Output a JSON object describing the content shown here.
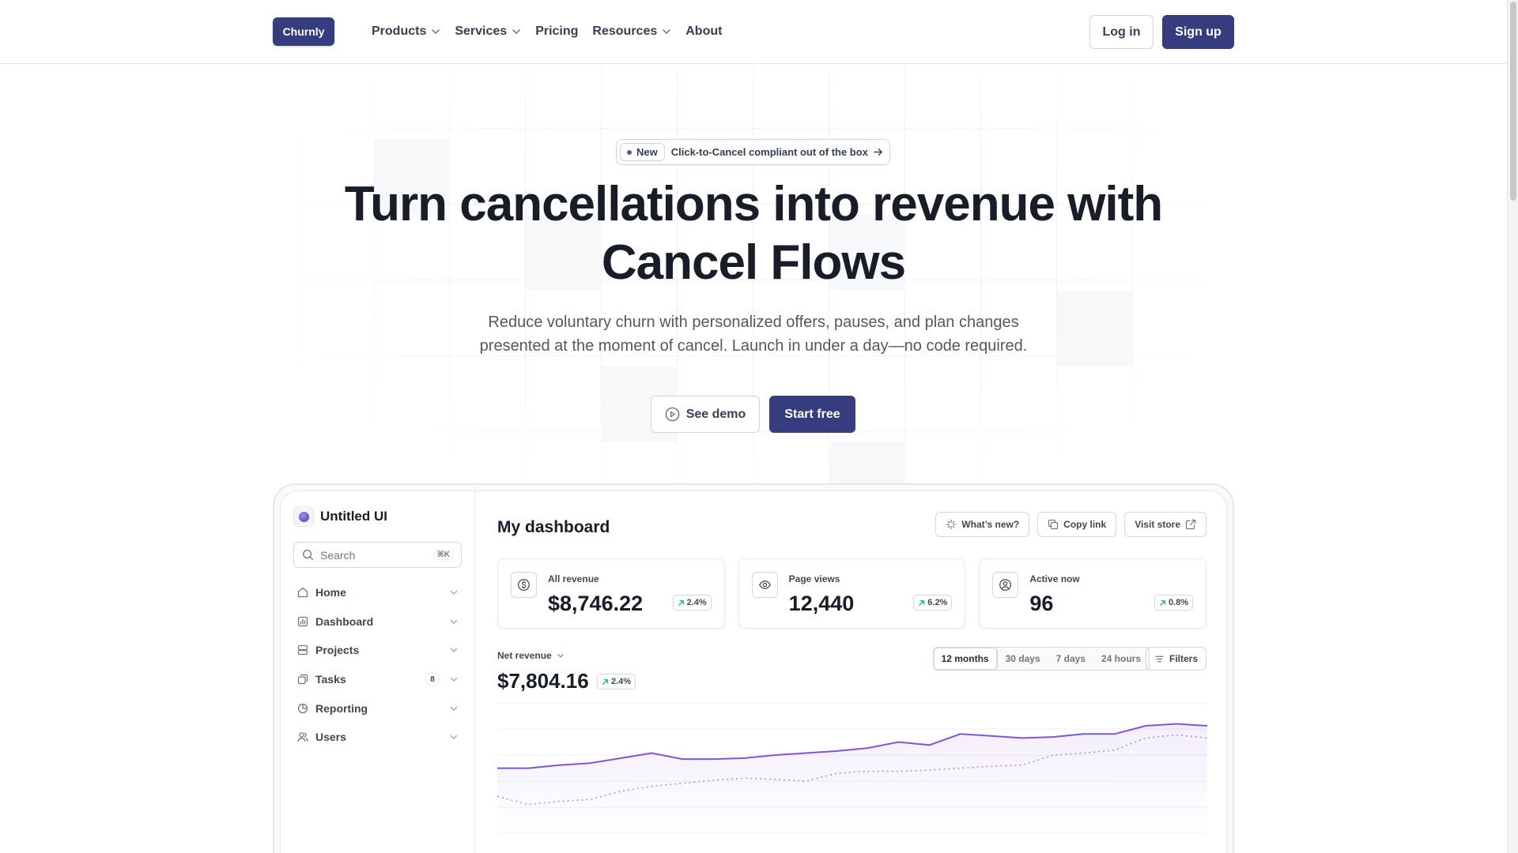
{
  "nav": {
    "logo": "Churnly",
    "items": [
      {
        "label": "Products",
        "dropdown": true
      },
      {
        "label": "Services",
        "dropdown": true
      },
      {
        "label": "Pricing",
        "dropdown": false
      },
      {
        "label": "Resources",
        "dropdown": true
      },
      {
        "label": "About",
        "dropdown": false
      }
    ],
    "login": "Log in",
    "signup": "Sign up"
  },
  "hero": {
    "badge_tag": "New",
    "badge_text": "Click-to-Cancel compliant out of the box",
    "headline_line1": "Turn cancellations into revenue with",
    "headline_line2": "Cancel Flows",
    "subhead_line1": "Reduce voluntary churn with personalized offers, pauses, and plan changes",
    "subhead_line2": "presented at the moment of cancel. Launch in under a day—no code required.",
    "demo_button": "See demo",
    "start_button": "Start free"
  },
  "dashboard": {
    "brand": "Untitled UI",
    "search_placeholder": "Search",
    "search_shortcut": "⌘K",
    "sidebar": [
      {
        "label": "Home",
        "icon": "home-icon"
      },
      {
        "label": "Dashboard",
        "icon": "bar-chart-icon"
      },
      {
        "label": "Projects",
        "icon": "layers-icon"
      },
      {
        "label": "Tasks",
        "icon": "check-square-icon",
        "badge": "8"
      },
      {
        "label": "Reporting",
        "icon": "pie-chart-icon"
      },
      {
        "label": "Users",
        "icon": "users-icon"
      }
    ],
    "title": "My dashboard",
    "actions": [
      {
        "label": "What’s new?",
        "icon": "sparkle-icon"
      },
      {
        "label": "Copy link",
        "icon": "copy-icon"
      },
      {
        "label": "Visit store",
        "icon": "external-link-icon"
      }
    ],
    "stats": [
      {
        "label": "All revenue",
        "value": "$8,746.22",
        "trend": "2.4%",
        "icon": "dollar-icon"
      },
      {
        "label": "Page views",
        "value": "12,440",
        "trend": "6.2%",
        "icon": "eye-icon"
      },
      {
        "label": "Active now",
        "value": "96",
        "trend": "0.8%",
        "icon": "user-circle-icon"
      }
    ],
    "net_revenue_label": "Net revenue",
    "net_revenue_value": "$7,804.16",
    "net_revenue_trend": "2.4%",
    "ranges": [
      "12 months",
      "30 days",
      "7 days",
      "24 hours"
    ],
    "active_range": "12 months",
    "filters": "Filters",
    "colors": {
      "primary": "#353d7f",
      "line": "#7f56d9",
      "trend_up": "#17b26a"
    }
  },
  "chart_data": {
    "type": "line",
    "ylim": [
      0,
      1
    ],
    "series": [
      {
        "values": [
          0.56,
          0.56,
          0.59,
          0.61,
          0.66,
          0.71,
          0.65,
          0.65,
          0.66,
          0.69,
          0.71,
          0.73,
          0.76,
          0.82,
          0.79,
          0.9,
          0.88,
          0.86,
          0.87,
          0.9,
          0.9,
          0.98,
          1.0,
          0.98
        ]
      },
      {
        "values": [
          0.28,
          0.2,
          0.23,
          0.25,
          0.33,
          0.38,
          0.41,
          0.44,
          0.46,
          0.45,
          0.43,
          0.51,
          0.53,
          0.53,
          0.54,
          0.56,
          0.58,
          0.59,
          0.69,
          0.71,
          0.74,
          0.86,
          0.89,
          0.86
        ],
        "dashed": true
      }
    ],
    "grid": true
  }
}
